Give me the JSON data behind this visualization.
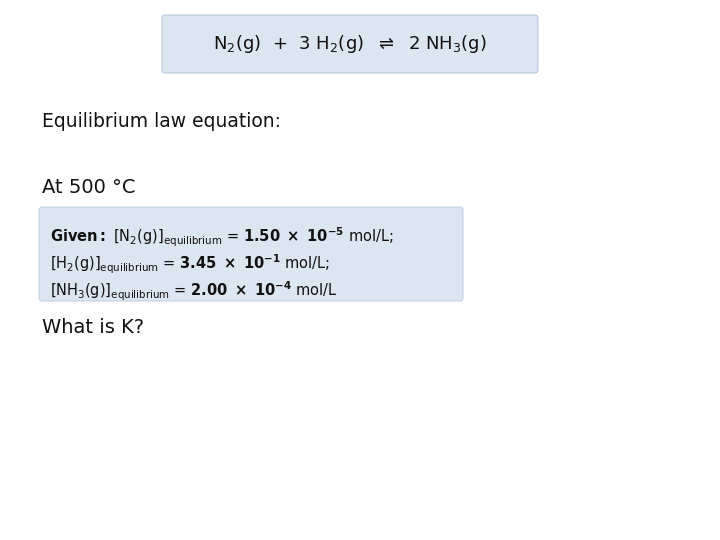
{
  "background_color": "#ffffff",
  "reaction_box_color": "#dce6f1",
  "given_box_color": "#dce6f1",
  "reaction_box_edge": "#b8c8dc",
  "equilibrium_label": "Equilibrium law equation:",
  "at_500_label": "At 500 °C",
  "what_is_k_label": "What is K?",
  "fig_w": 7.2,
  "fig_h": 5.4,
  "dpi": 100
}
